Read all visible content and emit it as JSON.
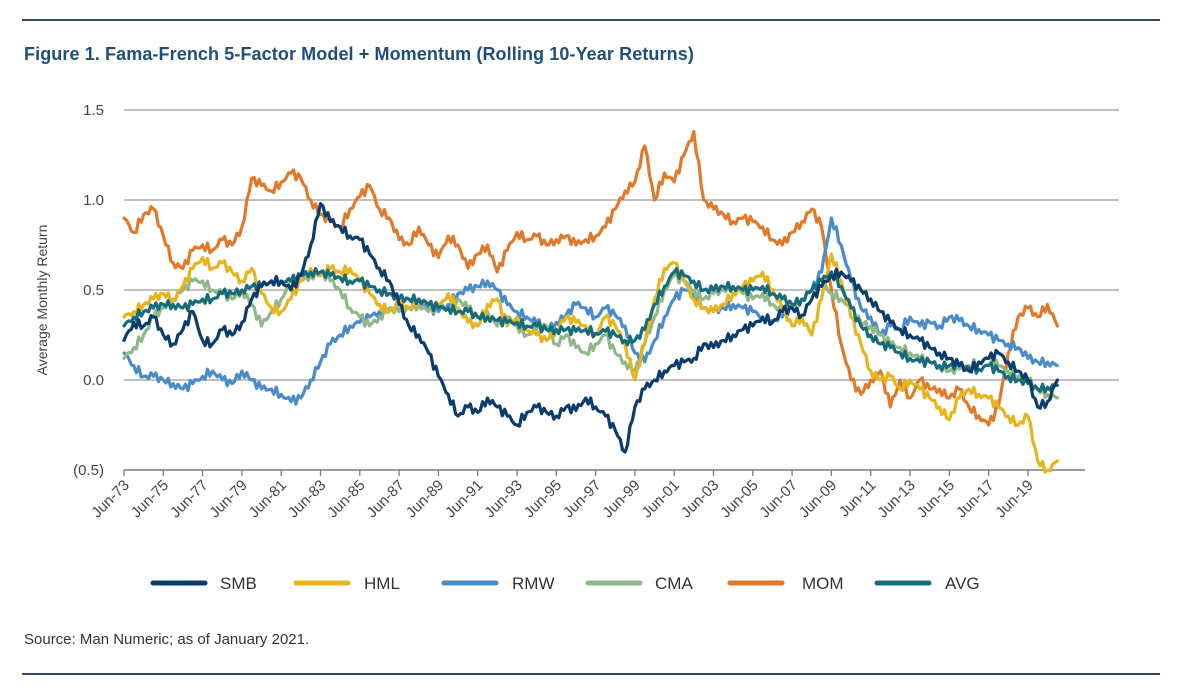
{
  "figure": {
    "title": "Figure 1. Fama-French 5-Factor Model + Momentum (Rolling 10-Year Returns)",
    "source": "Source: Man Numeric; as of January 2021."
  },
  "chart_data": {
    "type": "line",
    "title": "Figure 1. Fama-French 5-Factor Model + Momentum (Rolling 10-Year Returns)",
    "xlabel": "",
    "ylabel": "Average Monthly Return",
    "xlim": [
      1973.5,
      2021.0
    ],
    "ylim": [
      -0.5,
      1.5
    ],
    "yticks": [
      {
        "value": 1.5,
        "label": "1.5"
      },
      {
        "value": 1.0,
        "label": "1.0"
      },
      {
        "value": 0.5,
        "label": "0.5"
      },
      {
        "value": 0.0,
        "label": "0.0"
      },
      {
        "value": -0.5,
        "label": "(0.5)"
      }
    ],
    "xticks": [
      {
        "value": 1973.5,
        "label": "Jun-73"
      },
      {
        "value": 1975.5,
        "label": "Jun-75"
      },
      {
        "value": 1977.5,
        "label": "Jun-77"
      },
      {
        "value": 1979.5,
        "label": "Jun-79"
      },
      {
        "value": 1981.5,
        "label": "Jun-81"
      },
      {
        "value": 1983.5,
        "label": "Jun-83"
      },
      {
        "value": 1985.5,
        "label": "Jun-85"
      },
      {
        "value": 1987.5,
        "label": "Jun-87"
      },
      {
        "value": 1989.5,
        "label": "Jun-89"
      },
      {
        "value": 1991.5,
        "label": "Jun-91"
      },
      {
        "value": 1993.5,
        "label": "Jun-93"
      },
      {
        "value": 1995.5,
        "label": "Jun-95"
      },
      {
        "value": 1997.5,
        "label": "Jun-97"
      },
      {
        "value": 1999.5,
        "label": "Jun-99"
      },
      {
        "value": 2001.5,
        "label": "Jun-01"
      },
      {
        "value": 2003.5,
        "label": "Jun-03"
      },
      {
        "value": 2005.5,
        "label": "Jun-05"
      },
      {
        "value": 2007.5,
        "label": "Jun-07"
      },
      {
        "value": 2009.5,
        "label": "Jun-09"
      },
      {
        "value": 2011.5,
        "label": "Jun-11"
      },
      {
        "value": 2013.5,
        "label": "Jun-13"
      },
      {
        "value": 2015.5,
        "label": "Jun-15"
      },
      {
        "value": 2017.5,
        "label": "Jun-17"
      },
      {
        "value": 2019.5,
        "label": "Jun-19"
      }
    ],
    "grid": "horizontal",
    "legend": "bottom",
    "x": [
      1973.5,
      1974.0,
      1974.5,
      1975.0,
      1975.5,
      1976.0,
      1976.5,
      1977.0,
      1977.5,
      1978.0,
      1978.5,
      1979.0,
      1979.5,
      1980.0,
      1980.5,
      1981.0,
      1981.5,
      1982.0,
      1982.5,
      1983.0,
      1983.5,
      1984.0,
      1984.5,
      1985.0,
      1985.5,
      1986.0,
      1986.5,
      1987.0,
      1987.5,
      1988.0,
      1988.5,
      1989.0,
      1989.5,
      1990.0,
      1990.5,
      1991.0,
      1991.5,
      1992.0,
      1992.5,
      1993.0,
      1993.5,
      1994.0,
      1994.5,
      1995.0,
      1995.5,
      1996.0,
      1996.5,
      1997.0,
      1997.5,
      1998.0,
      1998.5,
      1999.0,
      1999.5,
      2000.0,
      2000.5,
      2001.0,
      2001.5,
      2002.0,
      2002.5,
      2003.0,
      2003.5,
      2004.0,
      2004.5,
      2005.0,
      2005.5,
      2006.0,
      2006.5,
      2007.0,
      2007.5,
      2008.0,
      2008.5,
      2009.0,
      2009.5,
      2010.0,
      2010.5,
      2011.0,
      2011.5,
      2012.0,
      2012.5,
      2013.0,
      2013.5,
      2014.0,
      2014.5,
      2015.0,
      2015.5,
      2016.0,
      2016.5,
      2017.0,
      2017.5,
      2018.0,
      2018.5,
      2019.0,
      2019.5,
      2020.0,
      2020.5,
      2021.0
    ],
    "series": [
      {
        "name": "SMB",
        "color": "#0b3c6b",
        "values": [
          0.22,
          0.32,
          0.3,
          0.35,
          0.25,
          0.2,
          0.28,
          0.38,
          0.22,
          0.2,
          0.28,
          0.25,
          0.32,
          0.45,
          0.52,
          0.55,
          0.55,
          0.5,
          0.58,
          0.75,
          0.98,
          0.88,
          0.85,
          0.8,
          0.78,
          0.7,
          0.62,
          0.55,
          0.42,
          0.3,
          0.25,
          0.15,
          0.02,
          -0.08,
          -0.2,
          -0.15,
          -0.18,
          -0.1,
          -0.15,
          -0.2,
          -0.25,
          -0.18,
          -0.15,
          -0.18,
          -0.2,
          -0.15,
          -0.17,
          -0.1,
          -0.15,
          -0.2,
          -0.28,
          -0.4,
          -0.15,
          -0.05,
          0.0,
          0.05,
          0.08,
          0.1,
          0.12,
          0.2,
          0.18,
          0.22,
          0.25,
          0.28,
          0.3,
          0.35,
          0.32,
          0.38,
          0.4,
          0.36,
          0.45,
          0.52,
          0.58,
          0.6,
          0.55,
          0.5,
          0.45,
          0.38,
          0.32,
          0.28,
          0.25,
          0.22,
          0.18,
          0.15,
          0.12,
          0.08,
          0.05,
          0.1,
          0.12,
          0.15,
          0.1,
          0.05,
          0.0,
          -0.15,
          -0.12,
          0.0
        ]
      },
      {
        "name": "HML",
        "color": "#e6b41c",
        "values": [
          0.35,
          0.38,
          0.42,
          0.45,
          0.48,
          0.45,
          0.52,
          0.62,
          0.68,
          0.62,
          0.65,
          0.6,
          0.55,
          0.62,
          0.48,
          0.4,
          0.38,
          0.45,
          0.55,
          0.62,
          0.58,
          0.62,
          0.6,
          0.62,
          0.55,
          0.48,
          0.42,
          0.38,
          0.42,
          0.4,
          0.45,
          0.42,
          0.4,
          0.48,
          0.4,
          0.32,
          0.3,
          0.42,
          0.45,
          0.3,
          0.35,
          0.28,
          0.25,
          0.22,
          0.28,
          0.35,
          0.32,
          0.3,
          0.25,
          0.35,
          0.3,
          0.2,
          0.0,
          0.2,
          0.45,
          0.62,
          0.65,
          0.55,
          0.45,
          0.4,
          0.38,
          0.42,
          0.48,
          0.52,
          0.55,
          0.6,
          0.5,
          0.4,
          0.3,
          0.35,
          0.25,
          0.45,
          0.7,
          0.55,
          0.35,
          0.2,
          0.05,
          0.0,
          0.02,
          -0.05,
          0.0,
          -0.05,
          -0.1,
          -0.15,
          -0.22,
          -0.1,
          -0.05,
          -0.08,
          -0.1,
          -0.15,
          -0.2,
          -0.25,
          -0.2,
          -0.45,
          -0.5,
          -0.45
        ]
      },
      {
        "name": "RMW",
        "color": "#4a8cca",
        "values": [
          0.15,
          0.08,
          0.02,
          0.02,
          0.0,
          -0.02,
          -0.05,
          -0.02,
          0.02,
          0.05,
          0.0,
          -0.02,
          0.05,
          0.0,
          -0.05,
          -0.05,
          -0.08,
          -0.12,
          -0.1,
          0.0,
          0.1,
          0.2,
          0.25,
          0.3,
          0.32,
          0.35,
          0.38,
          0.4,
          0.38,
          0.4,
          0.42,
          0.4,
          0.38,
          0.42,
          0.48,
          0.5,
          0.52,
          0.55,
          0.5,
          0.42,
          0.38,
          0.35,
          0.32,
          0.28,
          0.32,
          0.36,
          0.42,
          0.4,
          0.35,
          0.4,
          0.36,
          0.3,
          0.15,
          0.1,
          0.22,
          0.35,
          0.45,
          0.5,
          0.48,
          0.4,
          0.38,
          0.4,
          0.42,
          0.4,
          0.38,
          0.35,
          0.33,
          0.35,
          0.4,
          0.45,
          0.5,
          0.6,
          0.9,
          0.75,
          0.55,
          0.4,
          0.35,
          0.25,
          0.3,
          0.28,
          0.35,
          0.3,
          0.32,
          0.3,
          0.35,
          0.33,
          0.3,
          0.28,
          0.25,
          0.22,
          0.2,
          0.18,
          0.12,
          0.1,
          0.1,
          0.08
        ]
      },
      {
        "name": "CMA",
        "color": "#8fb888",
        "values": [
          0.12,
          0.18,
          0.25,
          0.35,
          0.4,
          0.45,
          0.5,
          0.55,
          0.55,
          0.5,
          0.48,
          0.45,
          0.5,
          0.42,
          0.3,
          0.38,
          0.45,
          0.55,
          0.55,
          0.58,
          0.6,
          0.55,
          0.5,
          0.4,
          0.35,
          0.3,
          0.35,
          0.4,
          0.38,
          0.4,
          0.42,
          0.38,
          0.42,
          0.4,
          0.45,
          0.4,
          0.35,
          0.38,
          0.3,
          0.35,
          0.3,
          0.25,
          0.28,
          0.3,
          0.2,
          0.25,
          0.18,
          0.15,
          0.2,
          0.25,
          0.15,
          0.1,
          0.05,
          0.2,
          0.35,
          0.5,
          0.58,
          0.55,
          0.5,
          0.45,
          0.48,
          0.5,
          0.52,
          0.48,
          0.45,
          0.48,
          0.42,
          0.38,
          0.4,
          0.45,
          0.5,
          0.55,
          0.48,
          0.45,
          0.4,
          0.32,
          0.3,
          0.25,
          0.2,
          0.18,
          0.15,
          0.12,
          0.1,
          0.08,
          0.05,
          0.06,
          0.08,
          0.1,
          0.12,
          0.08,
          0.05,
          0.02,
          0.0,
          -0.05,
          -0.08,
          -0.1
        ]
      },
      {
        "name": "MOM",
        "color": "#e07a2a",
        "values": [
          0.9,
          0.82,
          0.92,
          0.95,
          0.8,
          0.65,
          0.62,
          0.72,
          0.75,
          0.72,
          0.78,
          0.75,
          0.85,
          1.12,
          1.08,
          1.05,
          1.1,
          1.15,
          1.12,
          1.0,
          0.92,
          0.88,
          0.85,
          0.95,
          1.02,
          1.08,
          0.95,
          0.9,
          0.78,
          0.75,
          0.85,
          0.75,
          0.68,
          0.8,
          0.75,
          0.62,
          0.7,
          0.75,
          0.6,
          0.72,
          0.82,
          0.78,
          0.8,
          0.75,
          0.78,
          0.8,
          0.75,
          0.78,
          0.8,
          0.85,
          0.95,
          1.05,
          1.1,
          1.3,
          1.0,
          1.15,
          1.1,
          1.25,
          1.38,
          1.0,
          0.95,
          0.92,
          0.88,
          0.9,
          0.88,
          0.85,
          0.78,
          0.75,
          0.82,
          0.88,
          0.95,
          0.85,
          0.5,
          0.2,
          0.0,
          -0.08,
          0.0,
          0.05,
          -0.15,
          0.0,
          -0.1,
          0.0,
          -0.05,
          -0.05,
          -0.1,
          -0.05,
          -0.15,
          -0.2,
          -0.25,
          -0.15,
          0.15,
          0.35,
          0.4,
          0.35,
          0.42,
          0.3
        ]
      },
      {
        "name": "AVG",
        "color": "#176b7a",
        "values": [
          0.3,
          0.35,
          0.38,
          0.4,
          0.42,
          0.42,
          0.4,
          0.42,
          0.45,
          0.45,
          0.48,
          0.48,
          0.5,
          0.52,
          0.52,
          0.55,
          0.55,
          0.55,
          0.58,
          0.6,
          0.6,
          0.58,
          0.57,
          0.55,
          0.55,
          0.52,
          0.5,
          0.48,
          0.45,
          0.45,
          0.45,
          0.42,
          0.4,
          0.4,
          0.38,
          0.38,
          0.35,
          0.35,
          0.33,
          0.32,
          0.32,
          0.3,
          0.3,
          0.28,
          0.28,
          0.28,
          0.27,
          0.28,
          0.26,
          0.27,
          0.25,
          0.22,
          0.22,
          0.28,
          0.42,
          0.52,
          0.6,
          0.58,
          0.55,
          0.5,
          0.5,
          0.52,
          0.52,
          0.5,
          0.5,
          0.52,
          0.48,
          0.45,
          0.42,
          0.45,
          0.5,
          0.55,
          0.6,
          0.52,
          0.4,
          0.3,
          0.25,
          0.2,
          0.18,
          0.15,
          0.12,
          0.1,
          0.1,
          0.08,
          0.08,
          0.08,
          0.07,
          0.06,
          0.08,
          0.05,
          0.02,
          0.0,
          -0.02,
          -0.05,
          -0.04,
          -0.03
        ]
      }
    ]
  }
}
